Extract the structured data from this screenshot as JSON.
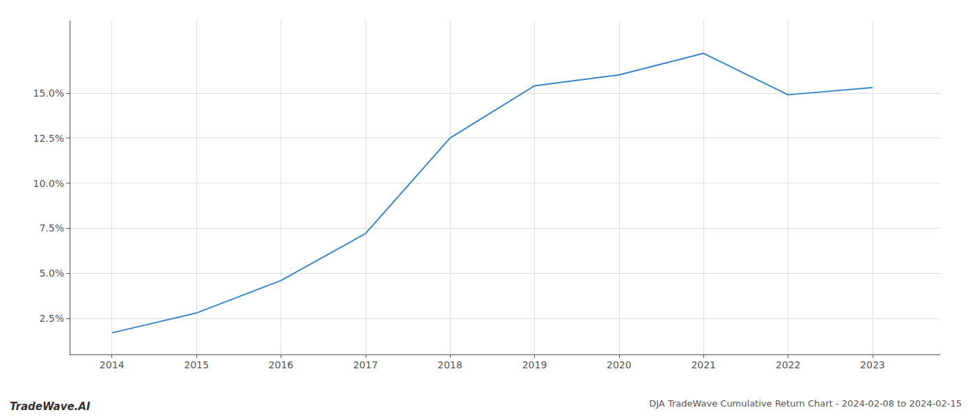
{
  "chart_data": {
    "type": "line",
    "title": "DJA TradeWave Cumulative Return Chart - 2024-02-08 to 2024-02-15",
    "annotations": [
      "TradeWave.AI"
    ],
    "x": [
      2014,
      2015,
      2016,
      2017,
      2018,
      2019,
      2020,
      2021,
      2022,
      2023
    ],
    "values": [
      1.7,
      2.8,
      4.6,
      7.2,
      12.5,
      15.4,
      16.0,
      17.2,
      14.9,
      15.3
    ],
    "color": "#3a86c8",
    "xlim": [
      2013.5,
      2023.8
    ],
    "xticks": [
      2014,
      2015,
      2016,
      2017,
      2018,
      2019,
      2020,
      2021,
      2022,
      2023
    ],
    "ylim": [
      0.5,
      19.0
    ],
    "yticks": [
      {
        "value": 2.5,
        "label": "2.5%"
      },
      {
        "value": 5.0,
        "label": "5.0%"
      },
      {
        "value": 7.5,
        "label": "7.5%"
      },
      {
        "value": 10.0,
        "label": "10.0%"
      },
      {
        "value": 12.5,
        "label": "12.5%"
      },
      {
        "value": 15.0,
        "label": "15.0%"
      }
    ],
    "grid": true
  }
}
